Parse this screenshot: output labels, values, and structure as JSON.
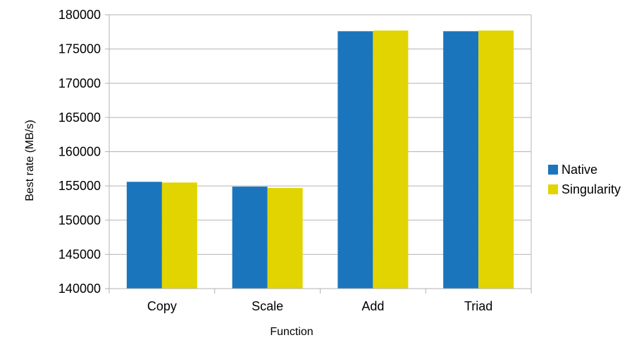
{
  "chart_data": {
    "type": "bar",
    "title": "",
    "xlabel": "Function",
    "ylabel": "Best  rate  (MB/s)",
    "categories": [
      "Copy",
      "Scale",
      "Add",
      "Triad"
    ],
    "series": [
      {
        "name": "Native",
        "color": "#1b75bc",
        "values": [
          155600,
          154900,
          177600,
          177600
        ]
      },
      {
        "name": "Singularity",
        "color": "#e2d400",
        "values": [
          155500,
          154700,
          177700,
          177700
        ]
      }
    ],
    "ylim": [
      140000,
      180000
    ],
    "yticks": [
      140000,
      145000,
      150000,
      155000,
      160000,
      165000,
      170000,
      175000,
      180000
    ],
    "grid": true,
    "legend_position": "right"
  }
}
